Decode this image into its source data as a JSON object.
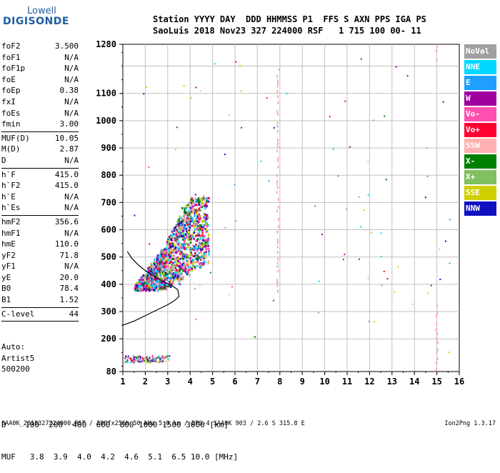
{
  "logo": {
    "line1": "Lowell",
    "line2": "DIGISONDE"
  },
  "header": {
    "row1": "Station YYYY DAY  DDD HHMMSS P1  FFS S AXN PPS IGA PS",
    "row2": "SaoLuis 2018 Nov23 327 224000 RSF   1 715 100 00- 11"
  },
  "params": [
    {
      "k": "foF2",
      "v": "3.500"
    },
    {
      "k": "foF1",
      "v": "N/A"
    },
    {
      "k": "foF1p",
      "v": "N/A"
    },
    {
      "k": "foE",
      "v": "N/A"
    },
    {
      "k": "foEp",
      "v": "0.38"
    },
    {
      "k": "fxI",
      "v": "N/A"
    },
    {
      "k": "foEs",
      "v": "N/A"
    },
    {
      "k": "fmin",
      "v": "3.00"
    }
  ],
  "params2": [
    {
      "k": "MUF(D)",
      "v": "10.05"
    },
    {
      "k": "M(D)",
      "v": "2.87"
    },
    {
      "k": "D",
      "v": "N/A"
    }
  ],
  "params3": [
    {
      "k": "h`F",
      "v": "415.0"
    },
    {
      "k": "h`F2",
      "v": "415.0"
    },
    {
      "k": "h`E",
      "v": "N/A"
    },
    {
      "k": "h`Es",
      "v": "N/A"
    }
  ],
  "params4": [
    {
      "k": "hmF2",
      "v": "356.6"
    },
    {
      "k": "hmF1",
      "v": "N/A"
    },
    {
      "k": "hmE",
      "v": "110.0"
    },
    {
      "k": "yF2",
      "v": "71.8"
    },
    {
      "k": "yF1",
      "v": "N/A"
    },
    {
      "k": "yE",
      "v": "20.0"
    },
    {
      "k": "B0",
      "v": "78.4"
    },
    {
      "k": "B1",
      "v": "1.52"
    }
  ],
  "clevel": {
    "k": "C-level",
    "v": "44"
  },
  "auto": [
    "Auto:",
    "Artist5",
    "500200"
  ],
  "legend": [
    {
      "name": "NoVal",
      "color": "#a0a0a0"
    },
    {
      "name": "NNE",
      "color": "#00d8ff"
    },
    {
      "name": "E",
      "color": "#1f9fff"
    },
    {
      "name": "W",
      "color": "#a000a0"
    },
    {
      "name": "Vo-",
      "color": "#ff50b0"
    },
    {
      "name": "Vo+",
      "color": "#ff0030"
    },
    {
      "name": "SSW",
      "color": "#ffb0b0"
    },
    {
      "name": "X-",
      "color": "#008000"
    },
    {
      "name": "X+",
      "color": "#80c060"
    },
    {
      "name": "SSE",
      "color": "#d0d000"
    },
    {
      "name": "NNW",
      "color": "#1010c0"
    }
  ],
  "bottom": {
    "row1": "D    100  200  400  600  800 1000 1500 3000 [km]",
    "row2": "MUF   3.8  3.9  4.0  4.2  4.6  5.1  6.5 10.0 [MHz]"
  },
  "footer": "SAA0K_2018327224000.RSF / 300fx256h 50 kHz 5.0 km / DPS-4 SAA0K 903 / 2.6 S 315.8 E",
  "footer_right": "Ion2Png 1.3.17",
  "chart_data": {
    "type": "scatter",
    "title": "",
    "xlabel": "",
    "ylabel": "",
    "x_ticks": [
      "1",
      "2",
      "3",
      "4",
      "5",
      "6",
      "7",
      "8",
      "9",
      "10",
      "11",
      "12",
      "13",
      "14",
      "15",
      "16"
    ],
    "y_ticks": [
      "80",
      "200",
      "300",
      "400",
      "500",
      "600",
      "700",
      "800",
      "900",
      "1000",
      "1100",
      "1280"
    ],
    "xlim": [
      1,
      16
    ],
    "ylim": [
      80,
      1280
    ],
    "grid": true,
    "profile_curve": [
      [
        1,
        250
      ],
      [
        1.5,
        265
      ],
      [
        2,
        285
      ],
      [
        2.5,
        305
      ],
      [
        3,
        325
      ],
      [
        3.3,
        340
      ],
      [
        3.5,
        355
      ],
      [
        3.45,
        380
      ],
      [
        3.2,
        395
      ],
      [
        2.8,
        410
      ],
      [
        2.4,
        430
      ],
      [
        2.0,
        450
      ],
      [
        1.7,
        470
      ],
      [
        1.4,
        495
      ],
      [
        1.2,
        520
      ]
    ],
    "trace_region": {
      "x": [
        1.5,
        4.8
      ],
      "y": [
        380,
        720
      ]
    }
  }
}
